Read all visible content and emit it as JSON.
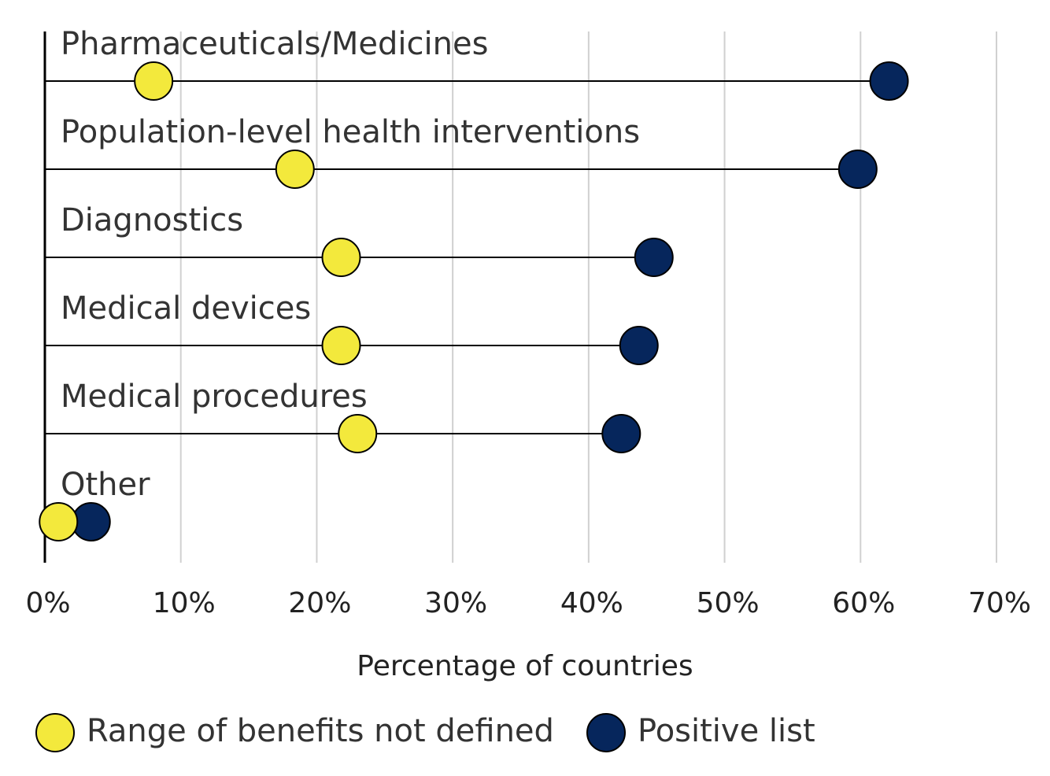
{
  "chart_data": {
    "type": "dumbbell",
    "categories": [
      "Pharmaceuticals/Medicines",
      "Population-level health interventions",
      "Diagnostics",
      "Medical devices",
      "Medical procedures",
      "Other"
    ],
    "series": [
      {
        "name": "Range of benefits not defined",
        "color": "#f3e93c",
        "values": [
          8.0,
          18.4,
          21.8,
          21.8,
          23.0,
          1.0
        ]
      },
      {
        "name": "Positive list",
        "color": "#06265c",
        "values": [
          62.1,
          59.8,
          44.8,
          43.7,
          42.4,
          3.4
        ]
      }
    ],
    "xlim": [
      0,
      70
    ],
    "xticks": [
      {
        "value": 0,
        "label": "0%"
      },
      {
        "value": 10,
        "label": "10%"
      },
      {
        "value": 20,
        "label": "20%"
      },
      {
        "value": 30,
        "label": "30%"
      },
      {
        "value": 40,
        "label": "40%"
      },
      {
        "value": 50,
        "label": "50%"
      },
      {
        "value": 60,
        "label": "60%"
      },
      {
        "value": 70,
        "label": "70%"
      }
    ],
    "xlabel": "Percentage of countries",
    "grid": true,
    "legend": "bottom"
  }
}
